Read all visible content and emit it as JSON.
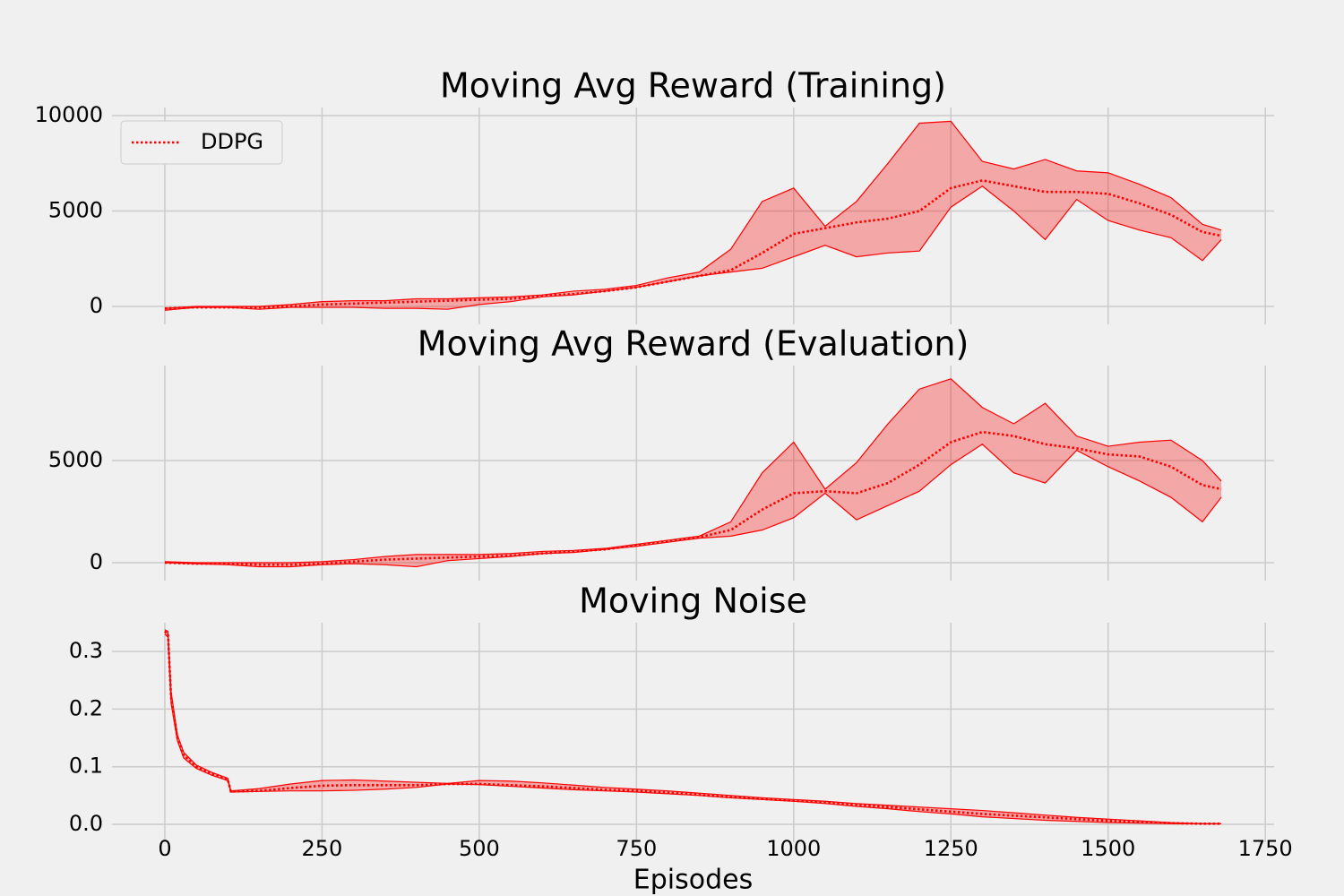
{
  "chart_data": [
    {
      "type": "line",
      "title": "Moving Avg Reward (Training)",
      "legend": "upper left",
      "grid": true,
      "x": [
        0,
        50,
        100,
        150,
        200,
        250,
        300,
        350,
        400,
        450,
        500,
        550,
        600,
        650,
        700,
        750,
        800,
        850,
        900,
        950,
        1000,
        1050,
        1100,
        1150,
        1200,
        1250,
        1300,
        1350,
        1400,
        1450,
        1500,
        1550,
        1600,
        1650,
        1680
      ],
      "ylim": [
        -470,
        10420
      ],
      "yticks": [
        0,
        5000,
        10000
      ],
      "series": [
        {
          "name": "DDPG",
          "color": "#ff0000",
          "values": [
            -100,
            -50,
            -50,
            -50,
            0,
            100,
            150,
            200,
            250,
            300,
            350,
            400,
            550,
            650,
            800,
            1000,
            1300,
            1600,
            1900,
            2800,
            3800,
            4100,
            4400,
            4600,
            5000,
            6200,
            6600,
            6300,
            6000,
            6000,
            5900,
            5400,
            4800,
            3900,
            3700
          ],
          "lower": [
            -200,
            -50,
            -50,
            -150,
            -50,
            -50,
            -50,
            -100,
            -100,
            -150,
            100,
            250,
            500,
            600,
            800,
            1000,
            1300,
            1600,
            1800,
            2000,
            2600,
            3200,
            2600,
            2800,
            2900,
            5200,
            6300,
            5000,
            3500,
            5600,
            4500,
            4000,
            3600,
            2400,
            3500
          ],
          "upper": [
            -100,
            0,
            0,
            0,
            100,
            250,
            300,
            300,
            400,
            400,
            450,
            500,
            600,
            800,
            900,
            1100,
            1500,
            1800,
            3000,
            5500,
            6200,
            4200,
            5500,
            7500,
            9600,
            9700,
            7600,
            7200,
            7700,
            7100,
            7000,
            6400,
            5700,
            4300,
            4000
          ]
        }
      ]
    },
    {
      "type": "line",
      "title": "Moving Avg Reward (Evaluation)",
      "grid": true,
      "x": [
        0,
        50,
        100,
        150,
        200,
        250,
        300,
        350,
        400,
        450,
        500,
        550,
        600,
        650,
        700,
        750,
        800,
        850,
        900,
        950,
        1000,
        1050,
        1100,
        1150,
        1200,
        1250,
        1300,
        1350,
        1400,
        1450,
        1500,
        1550,
        1600,
        1650,
        1680
      ],
      "ylim": [
        -439,
        9650
      ],
      "yticks": [
        0,
        5000
      ],
      "series": [
        {
          "color": "#ff0000",
          "values": [
            0,
            -50,
            -50,
            -100,
            -100,
            -50,
            50,
            150,
            200,
            250,
            300,
            350,
            450,
            550,
            650,
            850,
            1050,
            1250,
            1600,
            2600,
            3400,
            3500,
            3400,
            3900,
            4800,
            5900,
            6400,
            6200,
            5800,
            5600,
            5300,
            5200,
            4700,
            3800,
            3600
          ],
          "lower": [
            0,
            -50,
            -100,
            -200,
            -200,
            -100,
            -50,
            -100,
            -200,
            100,
            200,
            300,
            450,
            500,
            650,
            800,
            1000,
            1200,
            1300,
            1600,
            2200,
            3400,
            2100,
            2800,
            3500,
            4800,
            5800,
            4400,
            3900,
            5500,
            4700,
            4000,
            3200,
            2000,
            3200
          ],
          "upper": [
            50,
            0,
            0,
            0,
            0,
            50,
            150,
            300,
            400,
            400,
            400,
            450,
            550,
            600,
            700,
            900,
            1100,
            1300,
            2000,
            4400,
            5900,
            3600,
            4900,
            6800,
            8500,
            9000,
            7600,
            6800,
            7800,
            6200,
            5700,
            5900,
            6000,
            5000,
            4000
          ]
        }
      ]
    },
    {
      "type": "line",
      "title": "Moving Noise",
      "xlabel": "Episodes",
      "grid": true,
      "x": [
        0,
        5,
        10,
        20,
        30,
        50,
        75,
        100,
        105,
        150,
        200,
        250,
        300,
        350,
        400,
        450,
        500,
        550,
        600,
        650,
        700,
        750,
        800,
        850,
        900,
        950,
        1000,
        1050,
        1100,
        1150,
        1200,
        1250,
        1300,
        1350,
        1400,
        1450,
        1500,
        1550,
        1600,
        1650,
        1680
      ],
      "xlim": [
        -84,
        1764
      ],
      "xticks": [
        0,
        250,
        500,
        750,
        1000,
        1250,
        1500,
        1750
      ],
      "ylim": [
        -0.0156,
        0.35
      ],
      "yticks": [
        {
          "value": 0,
          "label": "0.0"
        },
        0.1,
        0.2,
        0.3
      ],
      "series": [
        {
          "color": "#ff0000",
          "values": [
            0.335,
            0.33,
            0.22,
            0.15,
            0.12,
            0.1,
            0.088,
            0.078,
            0.057,
            0.058,
            0.063,
            0.067,
            0.068,
            0.068,
            0.068,
            0.07,
            0.07,
            0.068,
            0.066,
            0.063,
            0.06,
            0.058,
            0.055,
            0.051,
            0.047,
            0.044,
            0.041,
            0.038,
            0.034,
            0.03,
            0.026,
            0.022,
            0.018,
            0.015,
            0.012,
            0.009,
            0.006,
            0.004,
            0.002,
            0.001,
            0.001
          ],
          "lower": [
            0.33,
            0.325,
            0.21,
            0.145,
            0.115,
            0.097,
            0.085,
            0.076,
            0.056,
            0.057,
            0.058,
            0.058,
            0.059,
            0.061,
            0.064,
            0.07,
            0.069,
            0.066,
            0.063,
            0.06,
            0.058,
            0.056,
            0.053,
            0.05,
            0.046,
            0.043,
            0.04,
            0.036,
            0.031,
            0.027,
            0.022,
            0.018,
            0.013,
            0.01,
            0.007,
            0.005,
            0.003,
            0.002,
            0.001,
            0.001,
            0.001
          ],
          "upper": [
            0.338,
            0.335,
            0.23,
            0.155,
            0.125,
            0.103,
            0.09,
            0.08,
            0.058,
            0.062,
            0.07,
            0.076,
            0.077,
            0.075,
            0.073,
            0.071,
            0.076,
            0.075,
            0.072,
            0.068,
            0.064,
            0.061,
            0.058,
            0.054,
            0.05,
            0.046,
            0.043,
            0.04,
            0.036,
            0.033,
            0.03,
            0.027,
            0.024,
            0.02,
            0.016,
            0.012,
            0.009,
            0.006,
            0.003,
            0.001,
            0.001
          ]
        }
      ]
    }
  ]
}
